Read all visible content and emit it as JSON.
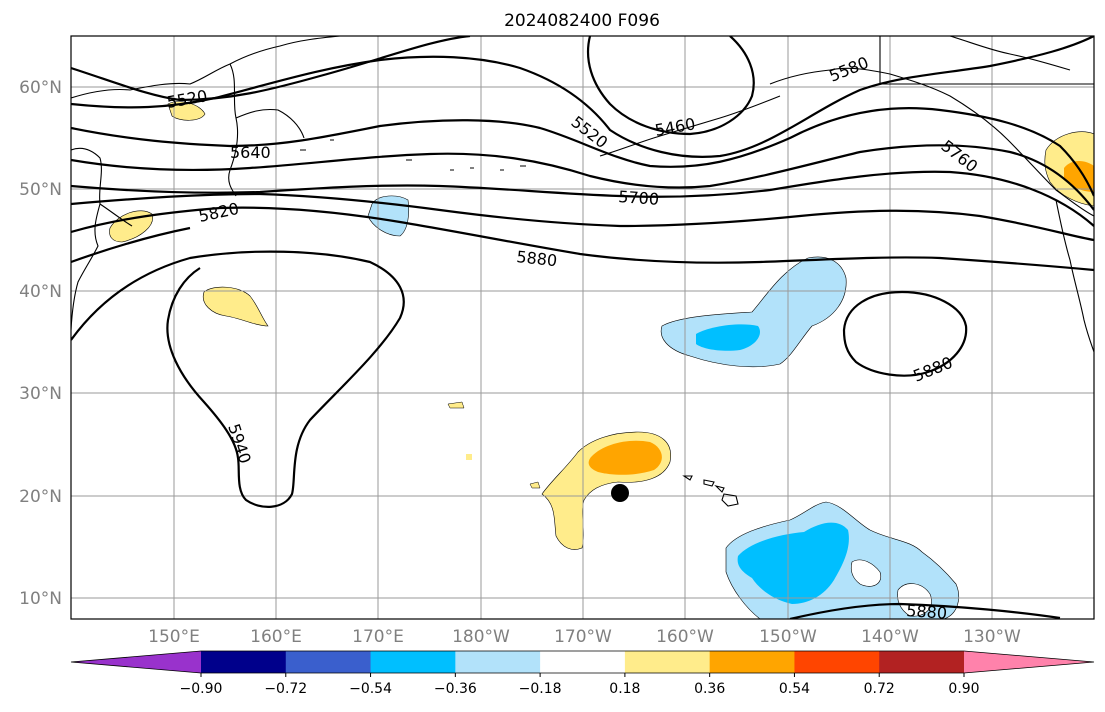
{
  "title": "2024082400 F096",
  "lat_labels": [
    "60°N",
    "50°N",
    "40°N",
    "30°N",
    "20°N",
    "10°N"
  ],
  "lon_labels": [
    "150°E",
    "160°E",
    "170°E",
    "180°W",
    "170°W",
    "160°W",
    "150°W",
    "140°W",
    "130°W"
  ],
  "contour_labels": [
    "5520",
    "5640",
    "5820",
    "5880",
    "5520",
    "5460",
    "5700",
    "5580",
    "5760",
    "5940",
    "5880",
    "5880"
  ],
  "colorbar": {
    "ticks": [
      "−0.90",
      "−0.72",
      "−0.54",
      "−0.36",
      "−0.18",
      "0.18",
      "0.36",
      "0.54",
      "0.72",
      "0.90"
    ],
    "colors": [
      "#9932cc",
      "#00008b",
      "#3a5fcd",
      "#00bfff",
      "#b2e2fa",
      "#ffffff",
      "#ffec8b",
      "#ffa500",
      "#ff4500",
      "#b22222",
      "#ff82ab"
    ]
  },
  "anomaly_colors": {
    "light_blue": "#b2e2fa",
    "blue": "#00bfff",
    "light_yellow": "#ffec8b",
    "orange": "#ffa500",
    "dark_orange": "#ff8c00"
  },
  "marker": {
    "label": "storm-center",
    "lat": 20.3,
    "lon": -166.5
  }
}
